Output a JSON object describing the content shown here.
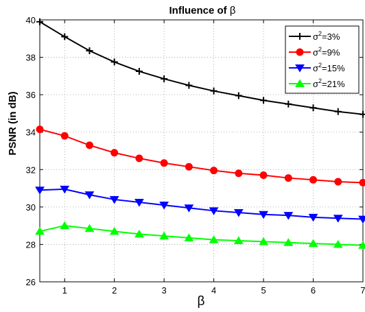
{
  "chart_data": {
    "type": "line",
    "title_main": "Influence of ",
    "title_symbol": "β",
    "xlabel": "β",
    "ylabel": "PSNR (in dB)",
    "xlim": [
      0.5,
      7
    ],
    "ylim": [
      26,
      40
    ],
    "xticks": [
      1,
      2,
      3,
      4,
      5,
      6,
      7
    ],
    "yticks": [
      26,
      28,
      30,
      32,
      34,
      36,
      38,
      40
    ],
    "grid": true,
    "legend_position": "top-right",
    "x": [
      0.5,
      1,
      1.5,
      2,
      2.5,
      3,
      3.5,
      4,
      4.5,
      5,
      5.5,
      6,
      6.5,
      7
    ],
    "series": [
      {
        "name_prefix": "σ",
        "name_sup": "2",
        "name_suffix": "=3%",
        "color": "#000000",
        "marker": "plus",
        "values": [
          39.9,
          39.1,
          38.35,
          37.75,
          37.25,
          36.85,
          36.5,
          36.2,
          35.95,
          35.7,
          35.5,
          35.3,
          35.1,
          34.95
        ]
      },
      {
        "name_prefix": "σ",
        "name_sup": "2",
        "name_suffix": "=9%",
        "color": "#ff0000",
        "marker": "circle",
        "values": [
          34.15,
          33.8,
          33.3,
          32.9,
          32.6,
          32.35,
          32.15,
          31.95,
          31.8,
          31.7,
          31.55,
          31.45,
          31.35,
          31.3
        ]
      },
      {
        "name_prefix": "σ",
        "name_sup": "2",
        "name_suffix": "=15%",
        "color": "#0000ff",
        "marker": "triangle-down",
        "values": [
          30.9,
          30.95,
          30.65,
          30.4,
          30.25,
          30.1,
          29.95,
          29.8,
          29.7,
          29.6,
          29.55,
          29.45,
          29.4,
          29.35
        ]
      },
      {
        "name_prefix": "σ",
        "name_sup": "2",
        "name_suffix": "=21%",
        "color": "#00ff00",
        "marker": "triangle-up",
        "values": [
          28.7,
          29.0,
          28.85,
          28.7,
          28.55,
          28.45,
          28.35,
          28.25,
          28.2,
          28.15,
          28.1,
          28.05,
          28.0,
          27.95
        ]
      }
    ]
  }
}
